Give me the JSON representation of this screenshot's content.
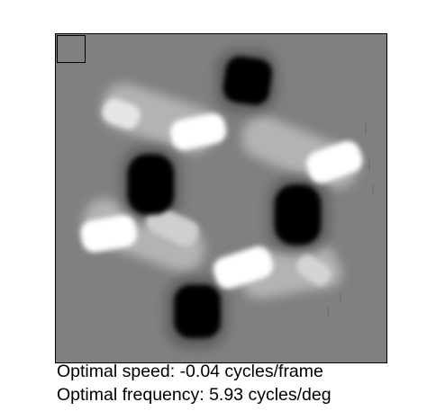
{
  "captions": {
    "speed": "Optimal speed: -0.04 cycles/frame",
    "frequency": "Optimal frequency: 5.93 cycles/deg"
  },
  "colors": {
    "background_gray": "#808080",
    "excitatory_white": "#ffffff",
    "inhibitory_black": "#000000",
    "halo_light": "#b8b8b8",
    "halo_dark": "#5c5c5c"
  }
}
